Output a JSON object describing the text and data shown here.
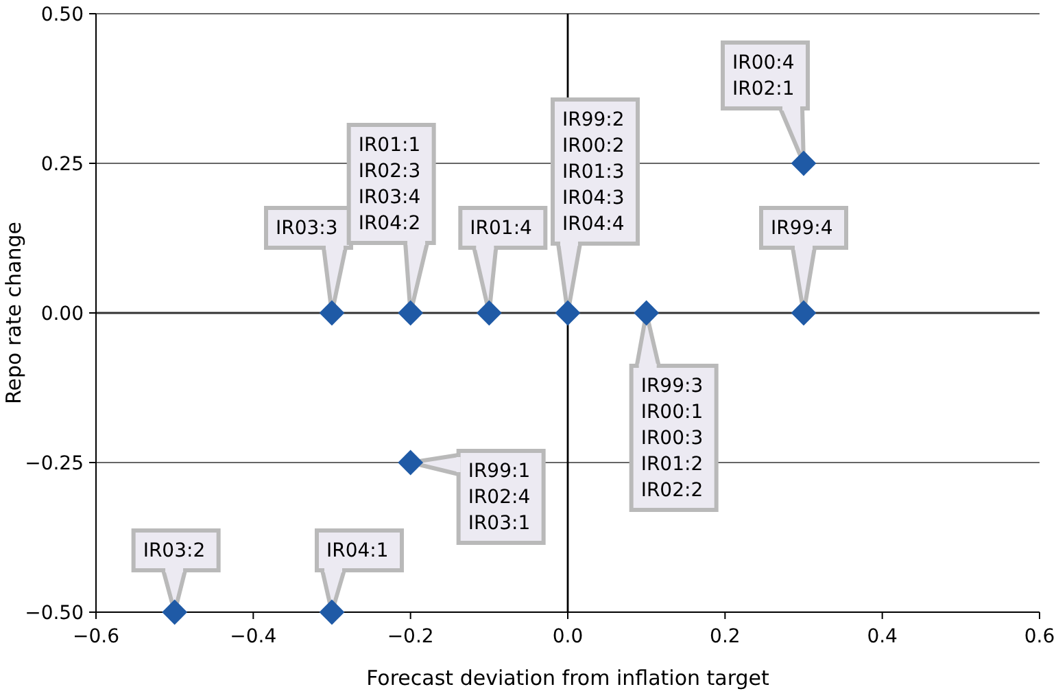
{
  "chart_data": {
    "type": "scatter",
    "xlabel": "Forecast deviation from inflation target",
    "ylabel": "Repo rate change",
    "x": [
      -0.5,
      -0.3,
      -0.2,
      -0.3,
      -0.2,
      -0.1,
      0,
      0.1,
      0.3,
      0.3
    ],
    "series": [
      {
        "color": "#1f5aa6",
        "values": [
          -0.5,
          -0.5,
          -0.25,
          0,
          0,
          0,
          0,
          0,
          0,
          0.25
        ]
      }
    ],
    "marker": "diamond",
    "grid": "y",
    "xlim": [
      -0.6,
      0.6
    ],
    "ylim": [
      -0.5,
      0.5
    ],
    "xticks": [
      {
        "value": -0.6,
        "label": "−0.6"
      },
      {
        "value": -0.4,
        "label": "−0.4"
      },
      {
        "value": -0.2,
        "label": "−0.2"
      },
      {
        "value": 0,
        "label": "0.0"
      },
      {
        "value": 0.2,
        "label": "0.2"
      },
      {
        "value": 0.4,
        "label": "0.4"
      },
      {
        "value": 0.6,
        "label": "0.6"
      }
    ],
    "yticks": [
      {
        "value": -0.5,
        "label": "−0.50"
      },
      {
        "value": -0.25,
        "label": "−0.25"
      },
      {
        "value": 0,
        "label": "0.00"
      },
      {
        "value": 0.25,
        "label": "0.25"
      },
      {
        "value": 0.5,
        "label": "0.50"
      }
    ],
    "ref_lines": [
      {
        "axis": "x",
        "value": 0
      }
    ],
    "annotations": [
      {
        "text": "IR03:2",
        "x": -0.5,
        "y": -0.5
      },
      {
        "text": "IR04:1",
        "x": -0.3,
        "y": -0.5
      },
      {
        "text": "IR99:1\nIR02:4\nIR03:1",
        "x": -0.2,
        "y": -0.25
      },
      {
        "text": "IR03:3",
        "x": -0.3,
        "y": 0
      },
      {
        "text": "IR01:1\nIR02:3\nIR03:4\nIR04:2",
        "x": -0.2,
        "y": 0
      },
      {
        "text": "IR01:4",
        "x": -0.1,
        "y": 0
      },
      {
        "text": "IR99:2\nIR00:2\nIR01:3\nIR04:3\nIR04:4",
        "x": 0,
        "y": 0
      },
      {
        "text": "IR99:3\nIR00:1\nIR00:3\nIR01:2\nIR02:2",
        "x": 0.1,
        "y": 0
      },
      {
        "text": "IR99:4",
        "x": 0.3,
        "y": 0
      },
      {
        "text": "IR00:4\nIR02:1",
        "x": 0.3,
        "y": 0.25
      }
    ]
  }
}
